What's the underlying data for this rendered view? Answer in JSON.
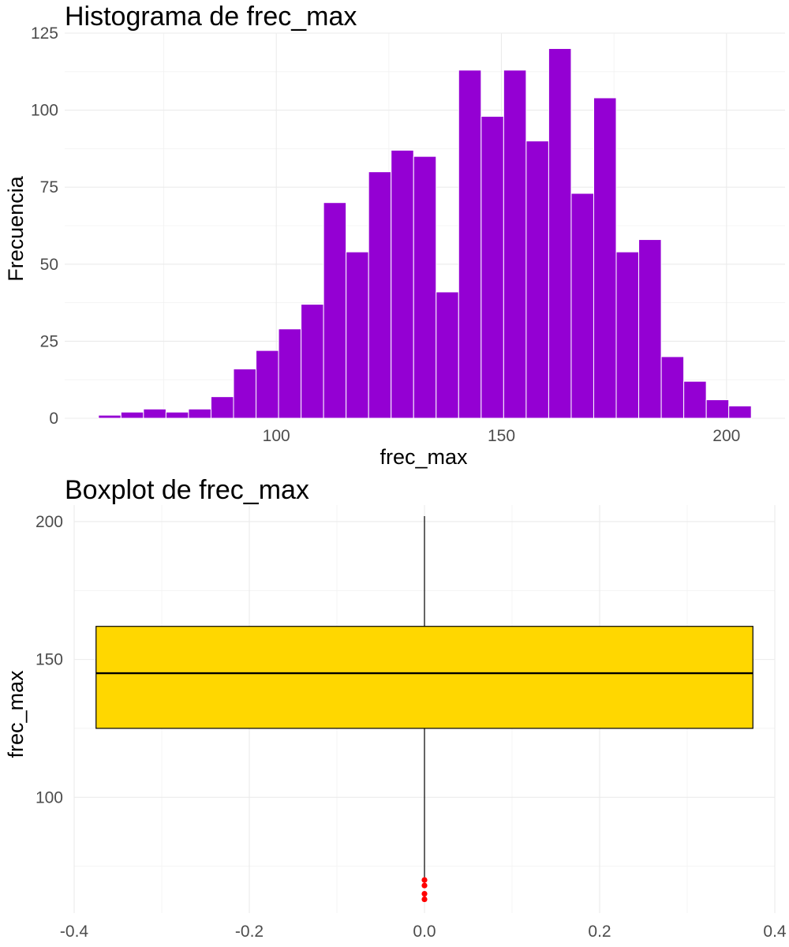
{
  "chart_data": [
    {
      "type": "bar",
      "title": "Histograma de frec_max",
      "xlabel": "frec_max",
      "ylabel": "Frecuencia",
      "bin_width": 5,
      "bin_centers": [
        63,
        68,
        73,
        78,
        83,
        88,
        93,
        98,
        103,
        108,
        113,
        118,
        123,
        128,
        133,
        138,
        143,
        148,
        153,
        158,
        163,
        168,
        173,
        178,
        183,
        188,
        193,
        198,
        203
      ],
      "values": [
        1,
        2,
        3,
        2,
        3,
        7,
        16,
        22,
        29,
        37,
        70,
        54,
        80,
        87,
        85,
        41,
        113,
        98,
        113,
        90,
        120,
        73,
        104,
        54,
        58,
        20,
        12,
        6,
        4
      ],
      "xlim": [
        53,
        213
      ],
      "ylim": [
        0,
        125
      ],
      "x_ticks": [
        100,
        150,
        200
      ],
      "x_tick_labels": [
        "100",
        "150",
        "200"
      ],
      "y_ticks": [
        0,
        25,
        50,
        75,
        100,
        125
      ],
      "y_tick_labels": [
        "0",
        "25",
        "50",
        "75",
        "100",
        "125"
      ],
      "fill_color": "#9400D3",
      "border_color": "#ffffff",
      "grid": true
    },
    {
      "type": "boxplot",
      "title": "Boxplot de frec_max",
      "xlabel": "",
      "ylabel": "frec_max",
      "x_center": 0,
      "box_half_width": 0.375,
      "lower_whisker": 71,
      "q1": 125,
      "median": 145,
      "q3": 162,
      "upper_whisker": 202,
      "outliers": [
        70,
        68,
        65,
        63
      ],
      "xlim": [
        -0.4,
        0.4
      ],
      "ylim": [
        58,
        206
      ],
      "x_ticks": [
        -0.4,
        -0.2,
        0.0,
        0.2,
        0.4
      ],
      "x_tick_labels": [
        "-0.4",
        "-0.2",
        "0.0",
        "0.2",
        "0.4"
      ],
      "y_ticks": [
        100,
        150,
        200
      ],
      "y_tick_labels": [
        "100",
        "150",
        "200"
      ],
      "fill_color": "#FFD700",
      "outlier_color": "#FF0000",
      "grid": true
    }
  ]
}
